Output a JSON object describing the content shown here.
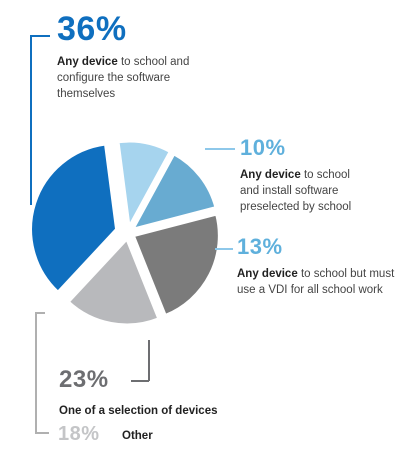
{
  "chart_data": {
    "type": "pie",
    "slices": [
      {
        "value": 36,
        "label": "36%",
        "desc_bold": "Any device",
        "desc_rest": "to school and configure the software themselves",
        "color": "#0f6fbf"
      },
      {
        "value": 10,
        "label": "10%",
        "desc_bold": "Any device",
        "desc_rest": "to school and install software preselected by school",
        "color": "#a6d4ee"
      },
      {
        "value": 13,
        "label": "13%",
        "desc_bold": "Any device",
        "desc_rest": "to school but must use a VDI for all school work",
        "color": "#68abd1"
      },
      {
        "value": 23,
        "label": "23%",
        "desc_bold": "One of a selection of devices",
        "desc_rest": "",
        "color": "#7b7b7b"
      },
      {
        "value": 18,
        "label": "18%",
        "desc_bold": "Other",
        "desc_rest": "",
        "color": "#b8b9bc"
      }
    ]
  },
  "colors": {
    "pct_blue": "#0f6fbf",
    "pct_lightblue": "#5fb0dc",
    "pct_gray": "#6d6e71",
    "pct_lightgray": "#c4c5c7",
    "leader_blue": "#0f6fbf",
    "leader_lightblue": "#8ec8ea",
    "leader_gray": "#6d6e71",
    "leader_lightgray": "#b0b0b0"
  }
}
